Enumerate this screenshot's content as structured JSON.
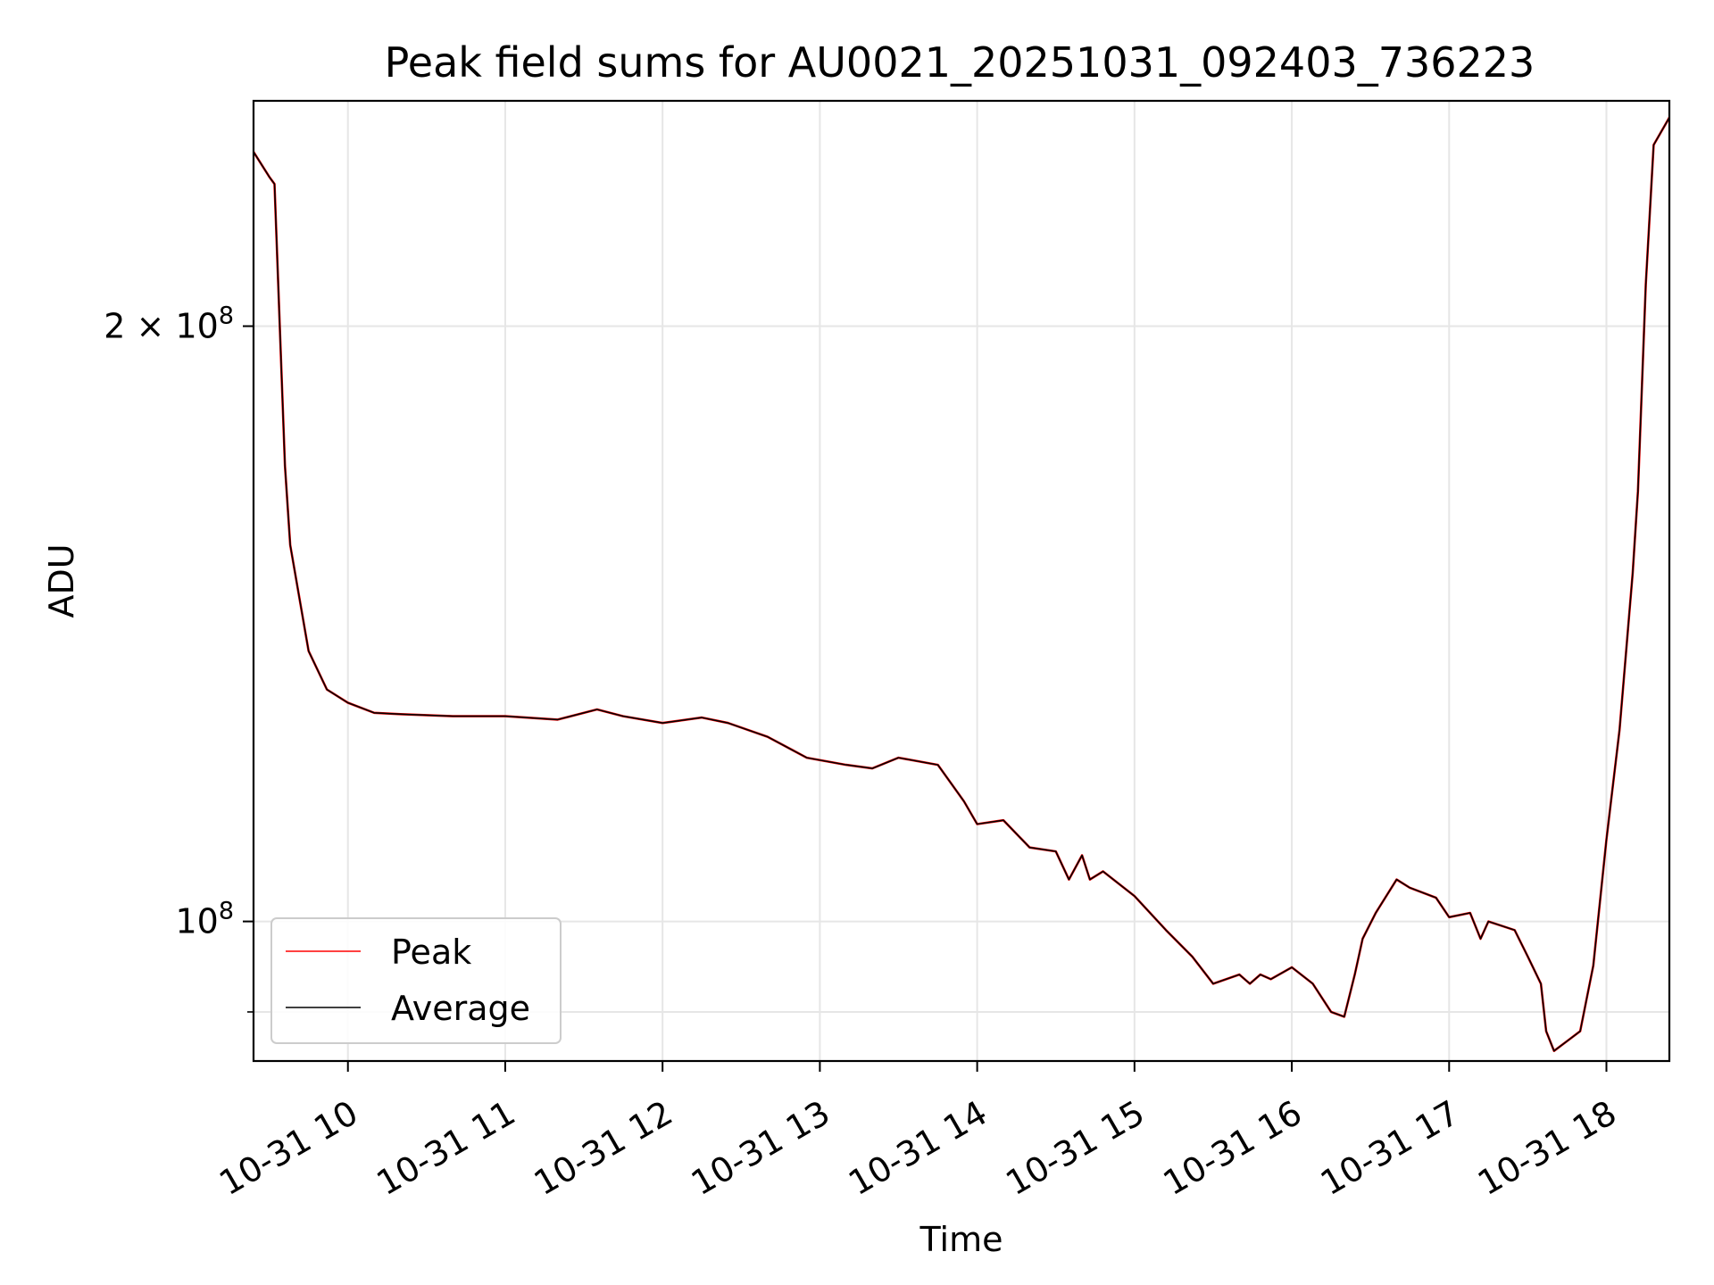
{
  "chart_data": {
    "type": "line",
    "title": "Peak field sums for AU0021_20251031_092403_736223",
    "xlabel": "Time",
    "ylabel": "ADU",
    "yscale": "log",
    "xlim": [
      "2025-10-31 09:24",
      "2025-10-31 18:24"
    ],
    "ylim": [
      85000000,
      260000000
    ],
    "grid": true,
    "legend": "lower-left",
    "x_tick_labels": [
      "10-31 10",
      "10-31 11",
      "10-31 12",
      "10-31 13",
      "10-31 14",
      "10-31 15",
      "10-31 16",
      "10-31 17",
      "10-31 18"
    ],
    "x_tick_values": [
      "2025-10-31 10:00",
      "2025-10-31 11:00",
      "2025-10-31 12:00",
      "2025-10-31 13:00",
      "2025-10-31 14:00",
      "2025-10-31 15:00",
      "2025-10-31 16:00",
      "2025-10-31 17:00",
      "2025-10-31 18:00"
    ],
    "y_major_ticks": [
      {
        "value": 100000000,
        "label": "10^8"
      },
      {
        "value": 200000000,
        "label": "2 × 10^8"
      }
    ],
    "y_minor_ticks": [
      90000000
    ],
    "x": [
      "2025-10-31 09:24",
      "2025-10-31 09:30",
      "2025-10-31 09:32",
      "2025-10-31 09:36",
      "2025-10-31 09:38",
      "2025-10-31 09:45",
      "2025-10-31 09:52",
      "2025-10-31 10:00",
      "2025-10-31 10:10",
      "2025-10-31 10:20",
      "2025-10-31 10:40",
      "2025-10-31 11:00",
      "2025-10-31 11:20",
      "2025-10-31 11:35",
      "2025-10-31 11:45",
      "2025-10-31 12:00",
      "2025-10-31 12:15",
      "2025-10-31 12:25",
      "2025-10-31 12:40",
      "2025-10-31 12:55",
      "2025-10-31 13:10",
      "2025-10-31 13:20",
      "2025-10-31 13:30",
      "2025-10-31 13:45",
      "2025-10-31 13:55",
      "2025-10-31 14:00",
      "2025-10-31 14:10",
      "2025-10-31 14:20",
      "2025-10-31 14:30",
      "2025-10-31 14:35",
      "2025-10-31 14:40",
      "2025-10-31 14:43",
      "2025-10-31 14:48",
      "2025-10-31 15:00",
      "2025-10-31 15:12",
      "2025-10-31 15:22",
      "2025-10-31 15:30",
      "2025-10-31 15:40",
      "2025-10-31 15:44",
      "2025-10-31 15:48",
      "2025-10-31 15:52",
      "2025-10-31 16:00",
      "2025-10-31 16:08",
      "2025-10-31 16:15",
      "2025-10-31 16:20",
      "2025-10-31 16:24",
      "2025-10-31 16:27",
      "2025-10-31 16:32",
      "2025-10-31 16:40",
      "2025-10-31 16:45",
      "2025-10-31 16:55",
      "2025-10-31 17:00",
      "2025-10-31 17:08",
      "2025-10-31 17:12",
      "2025-10-31 17:15",
      "2025-10-31 17:25",
      "2025-10-31 17:30",
      "2025-10-31 17:35",
      "2025-10-31 17:37",
      "2025-10-31 17:40",
      "2025-10-31 17:45",
      "2025-10-31 17:50",
      "2025-10-31 17:55",
      "2025-10-31 18:00",
      "2025-10-31 18:05",
      "2025-10-31 18:10",
      "2025-10-31 18:12",
      "2025-10-31 18:15",
      "2025-10-31 18:18",
      "2025-10-31 18:24"
    ],
    "series": [
      {
        "name": "Peak",
        "color": "#ff0000",
        "values": [
          245000000,
          238000000,
          236000000,
          170000000,
          155000000,
          137000000,
          131000000,
          129000000,
          127500000,
          127300000,
          127000000,
          127000000,
          126500000,
          128000000,
          127000000,
          126000000,
          126800000,
          126000000,
          124000000,
          121000000,
          120000000,
          119500000,
          121000000,
          120000000,
          115000000,
          112000000,
          112500000,
          109000000,
          108500000,
          105000000,
          108000000,
          105000000,
          106000000,
          103000000,
          99000000,
          96000000,
          93000000,
          94000000,
          93000000,
          94000000,
          93500000,
          94800000,
          93000000,
          90000000,
          89500000,
          94000000,
          98000000,
          101000000,
          105000000,
          104000000,
          102800000,
          100500000,
          101000000,
          98000000,
          100000000,
          99000000,
          96000000,
          93000000,
          88000000,
          86000000,
          87000000,
          88000000,
          95000000,
          110000000,
          125000000,
          150000000,
          165000000,
          210000000,
          247000000,
          255000000
        ]
      },
      {
        "name": "Average",
        "color": "#000000",
        "values": [
          245000000,
          238000000,
          236000000,
          170000000,
          155000000,
          137000000,
          131000000,
          129000000,
          127500000,
          127300000,
          127000000,
          127000000,
          126500000,
          128000000,
          127000000,
          126000000,
          126800000,
          126000000,
          124000000,
          121000000,
          120000000,
          119500000,
          121000000,
          120000000,
          115000000,
          112000000,
          112500000,
          109000000,
          108500000,
          105000000,
          108000000,
          105000000,
          106000000,
          103000000,
          99000000,
          96000000,
          93000000,
          94000000,
          93000000,
          94000000,
          93500000,
          94800000,
          93000000,
          90000000,
          89500000,
          94000000,
          98000000,
          101000000,
          105000000,
          104000000,
          102800000,
          100500000,
          101000000,
          98000000,
          100000000,
          99000000,
          96000000,
          93000000,
          88000000,
          86000000,
          87000000,
          88000000,
          95000000,
          110000000,
          125000000,
          150000000,
          165000000,
          210000000,
          247000000,
          255000000
        ]
      }
    ]
  }
}
